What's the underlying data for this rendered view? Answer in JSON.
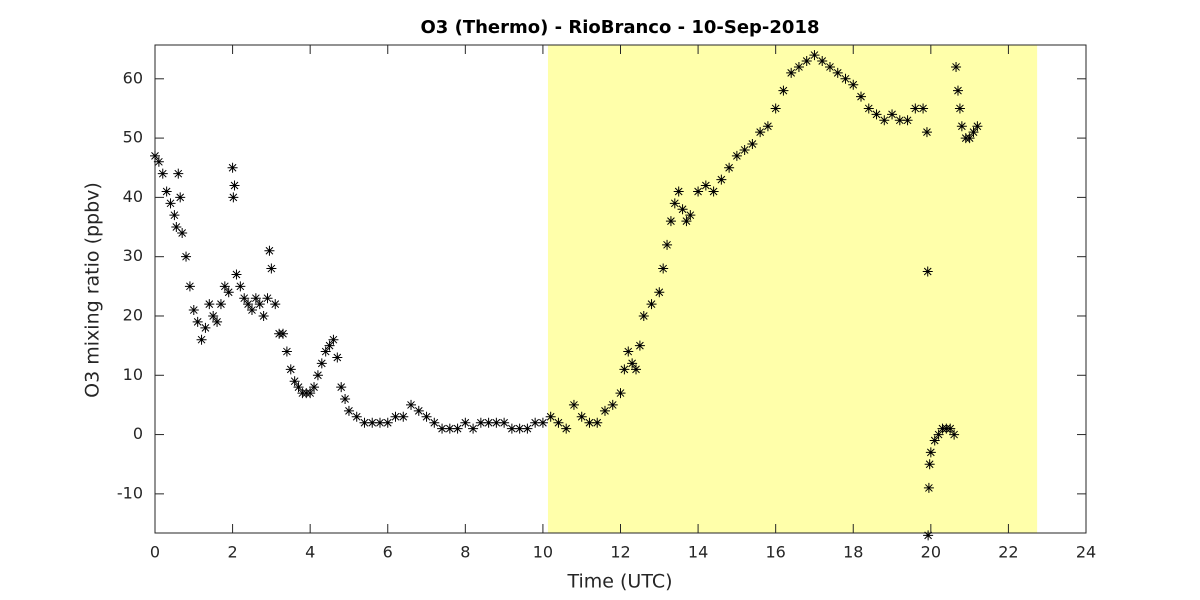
{
  "chart_data": {
    "type": "scatter",
    "title": "O3 (Thermo) - RioBranco - 10-Sep-2018",
    "xlabel": "Time (UTC)",
    "ylabel": "O3 mixing ratio (ppbv)",
    "xlim": [
      0,
      24
    ],
    "ylim": [
      -16.6,
      65.7
    ],
    "xticks": [
      0,
      2,
      4,
      6,
      8,
      10,
      12,
      14,
      16,
      18,
      20,
      22,
      24
    ],
    "yticks": [
      -10,
      0,
      10,
      20,
      30,
      40,
      50,
      60
    ],
    "shade": {
      "xlim": [
        10.13,
        22.74
      ],
      "color": "#ffffaa"
    },
    "series": [
      {
        "color": "#000000",
        "x": [
          0,
          0.1,
          0.2,
          0.3,
          0.4,
          0.5,
          0.55,
          0.6,
          0.65,
          0.7,
          0.8,
          0.9,
          1.0,
          1.1,
          1.2,
          1.3,
          1.4,
          1.5,
          1.6,
          1.7,
          1.8,
          1.9,
          2.0,
          2.02,
          2.05,
          2.1,
          2.2,
          2.3,
          2.4,
          2.5,
          2.6,
          2.7,
          2.8,
          2.9,
          2.95,
          3.0,
          3.1,
          3.2,
          3.3,
          3.4,
          3.5,
          3.6,
          3.7,
          3.8,
          3.9,
          4.0,
          4.1,
          4.2,
          4.3,
          4.4,
          4.5,
          4.6,
          4.7,
          4.8,
          4.9,
          5.0,
          5.2,
          5.4,
          5.6,
          5.8,
          6.0,
          6.2,
          6.4,
          6.6,
          6.8,
          7.0,
          7.2,
          7.4,
          7.6,
          7.8,
          8.0,
          8.2,
          8.4,
          8.6,
          8.8,
          9.0,
          9.2,
          9.4,
          9.6,
          9.8,
          10.0,
          10.2,
          10.4,
          10.6,
          10.8,
          11.0,
          11.2,
          11.4,
          11.6,
          11.8,
          12.0,
          12.1,
          12.2,
          12.3,
          12.4,
          12.5,
          12.6,
          12.8,
          13.0,
          13.1,
          13.2,
          13.3,
          13.4,
          13.5,
          13.6,
          13.7,
          13.8,
          14.0,
          14.2,
          14.4,
          14.6,
          14.8,
          15.0,
          15.2,
          15.4,
          15.6,
          15.8,
          16.0,
          16.2,
          16.4,
          16.6,
          16.8,
          17.0,
          17.2,
          17.4,
          17.6,
          17.8,
          18.0,
          18.2,
          18.4,
          18.6,
          18.8,
          19.0,
          19.2,
          19.4,
          19.6,
          19.8,
          19.9,
          19.92,
          19.93,
          19.95,
          19.97,
          20.0,
          20.1,
          20.2,
          20.3,
          20.4,
          20.5,
          20.6,
          20.65,
          20.7,
          20.75,
          20.8,
          20.9,
          21.0,
          21.1,
          21.2
        ],
        "values": [
          47,
          46,
          44,
          41,
          39,
          37,
          35,
          44,
          40,
          34,
          30,
          25,
          21,
          19,
          16,
          18,
          22,
          20,
          19,
          22,
          25,
          24,
          45,
          40,
          42,
          27,
          25,
          23,
          22,
          21,
          23,
          22,
          20,
          23,
          31,
          28,
          22,
          17,
          17,
          14,
          11,
          9,
          8,
          7,
          7,
          7,
          8,
          10,
          12,
          14,
          15,
          16,
          13,
          8,
          6,
          4,
          3,
          2,
          2,
          2,
          2,
          3,
          3,
          5,
          4,
          3,
          2,
          1,
          1,
          1,
          2,
          1,
          2,
          2,
          2,
          2,
          1,
          1,
          1,
          2,
          2,
          3,
          2,
          1,
          5,
          3,
          2,
          2,
          4,
          5,
          7,
          11,
          14,
          12,
          11,
          15,
          20,
          22,
          24,
          28,
          32,
          36,
          39,
          41,
          38,
          36,
          37,
          41,
          42,
          41,
          43,
          45,
          47,
          48,
          49,
          51,
          52,
          55,
          58,
          61,
          62,
          63,
          64,
          63,
          62,
          61,
          60,
          59,
          57,
          55,
          54,
          53,
          54,
          53,
          53,
          55,
          55,
          51,
          27.5,
          -17,
          -9,
          -5,
          -3,
          -1,
          0,
          1,
          1,
          1,
          0,
          62,
          58,
          55,
          52,
          50,
          50,
          51,
          52
        ]
      }
    ]
  }
}
